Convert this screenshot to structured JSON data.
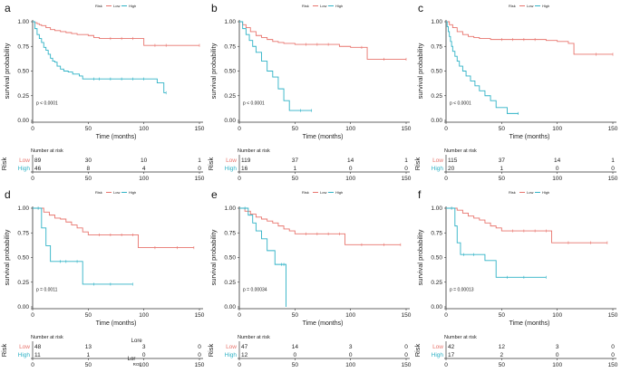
{
  "colors": {
    "low": "#e8746d",
    "high": "#2fb2c6",
    "axis": "#333333",
    "text": "#222222"
  },
  "shared": {
    "legend_title": "Risk",
    "legend_low": "Low",
    "legend_high": "High",
    "ylabel": "survival probability",
    "xlabel": "Time (months)",
    "yticks": [
      "0.00",
      "0.25",
      "0.50",
      "0.75",
      "1.00"
    ],
    "xticks": [
      "0",
      "50",
      "100",
      "150"
    ],
    "risk_title": "Number at risk",
    "risk_axis_label": "Risk",
    "risk_row_low": "Low",
    "risk_row_high": "High"
  },
  "chart_data": [
    {
      "type": "line",
      "panel": "a",
      "title": "a",
      "pvalue": "p < 0.0001",
      "show_legend": true,
      "xlim": [
        0,
        150
      ],
      "ylim": [
        0,
        1
      ],
      "series": [
        {
          "name": "Low",
          "x": [
            0,
            2,
            4,
            6,
            8,
            12,
            16,
            20,
            25,
            30,
            35,
            40,
            50,
            55,
            60,
            70,
            80,
            90,
            100,
            110,
            120,
            150
          ],
          "y": [
            1,
            0.99,
            0.98,
            0.97,
            0.96,
            0.94,
            0.92,
            0.91,
            0.9,
            0.89,
            0.88,
            0.87,
            0.86,
            0.84,
            0.83,
            0.83,
            0.83,
            0.83,
            0.76,
            0.76,
            0.76,
            0.76
          ]
        },
        {
          "name": "High",
          "x": [
            0,
            2,
            4,
            6,
            8,
            10,
            12,
            14,
            16,
            18,
            20,
            22,
            25,
            28,
            32,
            36,
            42,
            45,
            55,
            60,
            70,
            80,
            90,
            100,
            112,
            118,
            120
          ],
          "y": [
            1,
            0.93,
            0.87,
            0.83,
            0.79,
            0.74,
            0.71,
            0.67,
            0.63,
            0.6,
            0.59,
            0.55,
            0.52,
            0.5,
            0.49,
            0.47,
            0.45,
            0.42,
            0.42,
            0.42,
            0.42,
            0.42,
            0.42,
            0.42,
            0.38,
            0.28,
            0.28
          ]
        }
      ],
      "risk": {
        "low": [
          "89",
          "30",
          "10",
          "1"
        ],
        "high": [
          "46",
          "8",
          "4",
          "0"
        ]
      }
    },
    {
      "type": "line",
      "panel": "b",
      "title": "b",
      "pvalue": "p < 0.0001",
      "show_legend": true,
      "xlim": [
        0,
        150
      ],
      "ylim": [
        0,
        1
      ],
      "series": [
        {
          "name": "Low",
          "x": [
            0,
            3,
            6,
            10,
            15,
            20,
            25,
            30,
            35,
            40,
            50,
            60,
            70,
            80,
            90,
            100,
            110,
            115,
            130,
            150
          ],
          "y": [
            1,
            0.97,
            0.94,
            0.9,
            0.86,
            0.84,
            0.82,
            0.8,
            0.79,
            0.78,
            0.77,
            0.77,
            0.77,
            0.77,
            0.75,
            0.74,
            0.74,
            0.62,
            0.62,
            0.62
          ]
        },
        {
          "name": "High",
          "x": [
            0,
            3,
            6,
            9,
            12,
            15,
            20,
            25,
            30,
            35,
            40,
            45,
            55,
            65
          ],
          "y": [
            1,
            0.93,
            0.87,
            0.81,
            0.75,
            0.69,
            0.6,
            0.5,
            0.44,
            0.32,
            0.2,
            0.1,
            0.1,
            0.1
          ]
        }
      ],
      "risk": {
        "low": [
          "119",
          "37",
          "14",
          "1"
        ],
        "high": [
          "16",
          "1",
          "0",
          "0"
        ]
      }
    },
    {
      "type": "line",
      "panel": "c",
      "title": "c",
      "pvalue": "p < 0.0001",
      "show_legend": true,
      "xlim": [
        0,
        150
      ],
      "ylim": [
        0,
        1
      ],
      "series": [
        {
          "name": "Low",
          "x": [
            0,
            3,
            6,
            10,
            15,
            20,
            25,
            30,
            40,
            50,
            60,
            70,
            80,
            90,
            100,
            110,
            115,
            135,
            150
          ],
          "y": [
            1,
            0.97,
            0.94,
            0.9,
            0.87,
            0.85,
            0.84,
            0.83,
            0.82,
            0.82,
            0.82,
            0.82,
            0.82,
            0.81,
            0.8,
            0.78,
            0.67,
            0.67,
            0.67
          ]
        },
        {
          "name": "High",
          "x": [
            0,
            1,
            2,
            3,
            4,
            5,
            6,
            8,
            10,
            12,
            15,
            18,
            22,
            26,
            30,
            35,
            40,
            45,
            55,
            65
          ],
          "y": [
            1,
            0.95,
            0.9,
            0.85,
            0.8,
            0.75,
            0.7,
            0.65,
            0.6,
            0.55,
            0.5,
            0.45,
            0.4,
            0.35,
            0.3,
            0.25,
            0.2,
            0.13,
            0.07,
            0.07
          ]
        }
      ],
      "risk": {
        "low": [
          "115",
          "37",
          "14",
          "1"
        ],
        "high": [
          "20",
          "1",
          "0",
          "0"
        ]
      }
    },
    {
      "type": "line",
      "panel": "d",
      "title": "d",
      "pvalue": "p = 0.0011",
      "show_legend": true,
      "xlim": [
        0,
        150
      ],
      "ylim": [
        0,
        1
      ],
      "series": [
        {
          "name": "Low",
          "x": [
            0,
            5,
            10,
            15,
            20,
            25,
            30,
            35,
            40,
            45,
            50,
            60,
            70,
            80,
            90,
            95,
            110,
            130,
            145
          ],
          "y": [
            1,
            1,
            0.96,
            0.93,
            0.9,
            0.89,
            0.86,
            0.83,
            0.8,
            0.76,
            0.73,
            0.73,
            0.73,
            0.73,
            0.73,
            0.6,
            0.6,
            0.6,
            0.6
          ]
        },
        {
          "name": "High",
          "x": [
            0,
            5,
            8,
            12,
            16,
            25,
            30,
            40,
            45,
            55,
            70,
            90
          ],
          "y": [
            1,
            1,
            0.8,
            0.62,
            0.46,
            0.46,
            0.46,
            0.46,
            0.23,
            0.23,
            0.23,
            0.23
          ]
        }
      ],
      "risk": {
        "low": [
          "48",
          "13",
          "3",
          "0"
        ],
        "high": [
          "11",
          "1",
          "0",
          "0"
        ]
      },
      "stray_labels": {
        "lore": "Lore",
        "lor": "Lor",
        "rol": "ROL"
      }
    },
    {
      "type": "line",
      "panel": "e",
      "title": "e",
      "pvalue": "p = 0.00034",
      "show_legend": true,
      "xlim": [
        0,
        150
      ],
      "ylim": [
        0,
        1
      ],
      "series": [
        {
          "name": "Low",
          "x": [
            0,
            5,
            10,
            15,
            20,
            25,
            30,
            35,
            40,
            45,
            50,
            60,
            70,
            80,
            90,
            95,
            110,
            130,
            145
          ],
          "y": [
            1,
            0.97,
            0.94,
            0.91,
            0.89,
            0.87,
            0.85,
            0.82,
            0.79,
            0.77,
            0.74,
            0.74,
            0.74,
            0.74,
            0.74,
            0.63,
            0.63,
            0.63,
            0.63
          ]
        },
        {
          "name": "High",
          "x": [
            0,
            5,
            8,
            12,
            15,
            20,
            25,
            32,
            38,
            40,
            42
          ],
          "y": [
            1,
            1,
            0.93,
            0.85,
            0.77,
            0.69,
            0.57,
            0.43,
            0.43,
            0.43,
            0
          ]
        }
      ],
      "risk": {
        "low": [
          "47",
          "14",
          "3",
          "0"
        ],
        "high": [
          "12",
          "0",
          "0",
          "0"
        ]
      }
    },
    {
      "type": "line",
      "panel": "f",
      "title": "f",
      "pvalue": "p = 0.00013",
      "show_legend": true,
      "xlim": [
        0,
        150
      ],
      "ylim": [
        0,
        1
      ],
      "series": [
        {
          "name": "Low",
          "x": [
            0,
            5,
            10,
            15,
            20,
            25,
            30,
            35,
            40,
            45,
            50,
            60,
            70,
            80,
            90,
            95,
            110,
            130,
            145
          ],
          "y": [
            1,
            1,
            0.98,
            0.95,
            0.92,
            0.9,
            0.88,
            0.85,
            0.82,
            0.8,
            0.77,
            0.77,
            0.77,
            0.77,
            0.77,
            0.65,
            0.65,
            0.65,
            0.65
          ]
        },
        {
          "name": "High",
          "x": [
            0,
            5,
            8,
            10,
            13,
            16,
            25,
            35,
            45,
            55,
            70,
            90
          ],
          "y": [
            1,
            1,
            0.82,
            0.65,
            0.53,
            0.53,
            0.53,
            0.47,
            0.3,
            0.3,
            0.3,
            0.3
          ]
        }
      ],
      "risk": {
        "low": [
          "42",
          "12",
          "3",
          "0"
        ],
        "high": [
          "17",
          "2",
          "0",
          "0"
        ]
      }
    }
  ]
}
